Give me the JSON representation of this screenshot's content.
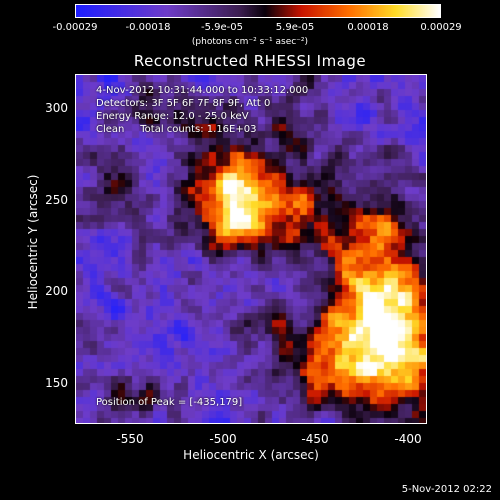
{
  "colorbar": {
    "ticks": [
      "-0.00029",
      "-0.00018",
      "-5.9e-05",
      "5.9e-05",
      "0.00018",
      "0.00029"
    ],
    "unit": "(photons cm⁻² s⁻¹ asec⁻²)"
  },
  "title": "Reconstructed RHESSI Image",
  "info": {
    "time": "4-Nov-2012 10:31:44.000 to 10:33:12.000",
    "detectors": "Detectors: 3F 5F 6F 7F 8F 9F, Att 0",
    "energy": "Energy Range: 12.0 - 25.0 keV",
    "clean": "Clean     Total counts: 1.16E+03",
    "peak": "Position of Peak = [-435,179]"
  },
  "axes": {
    "xlabel": "Heliocentric X (arcsec)",
    "ylabel": "Heliocentric Y (arcsec)",
    "xticks": [
      "-550",
      "-500",
      "-450",
      "-400"
    ],
    "yticks": [
      "300",
      "250",
      "200",
      "150"
    ]
  },
  "footer_date": "5-Nov-2012 02:22",
  "chart_data": {
    "type": "heatmap",
    "title": "Reconstructed RHESSI Image",
    "xlabel": "Heliocentric X (arcsec)",
    "ylabel": "Heliocentric Y (arcsec)",
    "xlim": [
      -580,
      -390
    ],
    "ylim": [
      125,
      315
    ],
    "colorbar_range": [
      -0.00029,
      0.00029
    ],
    "peak": [
      -435,
      179
    ],
    "colors": {
      "low": "#2020ff",
      "mid": "#000000",
      "high": "#ffffff"
    }
  }
}
